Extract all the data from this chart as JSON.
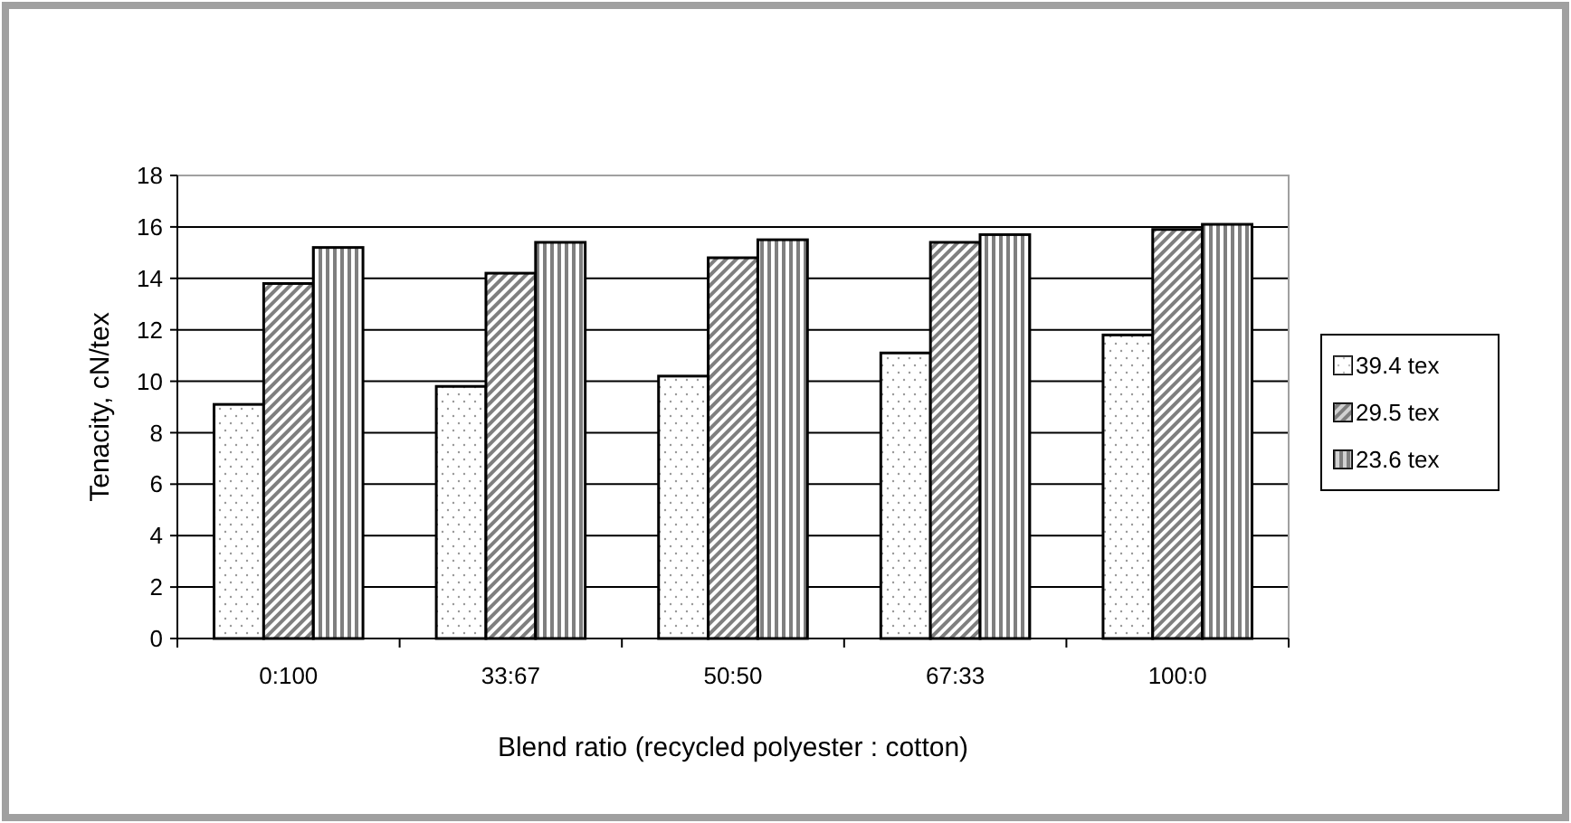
{
  "chart_data": {
    "type": "bar",
    "xlabel": "Blend ratio (recycled polyester : cotton)",
    "ylabel": "Tenacity, cN/tex",
    "categories": [
      "0:100",
      "33:67",
      "50:50",
      "67:33",
      "100:0"
    ],
    "series": [
      {
        "name": "39.4 tex",
        "color": "#ffffff",
        "values": [
          9.1,
          9.8,
          10.2,
          11.1,
          11.8
        ]
      },
      {
        "name": "29.5 tex",
        "color": "#7f7f7f",
        "values": [
          13.8,
          14.2,
          14.8,
          15.4,
          15.9
        ]
      },
      {
        "name": "23.6 tex",
        "color": "#7f7f7f",
        "values": [
          15.2,
          15.4,
          15.5,
          15.7,
          16.1
        ]
      }
    ],
    "ylim": [
      0,
      18
    ],
    "yticks": [
      0,
      2,
      4,
      6,
      8,
      10,
      12,
      14,
      16,
      18
    ],
    "grid": "y",
    "legend": "right"
  }
}
